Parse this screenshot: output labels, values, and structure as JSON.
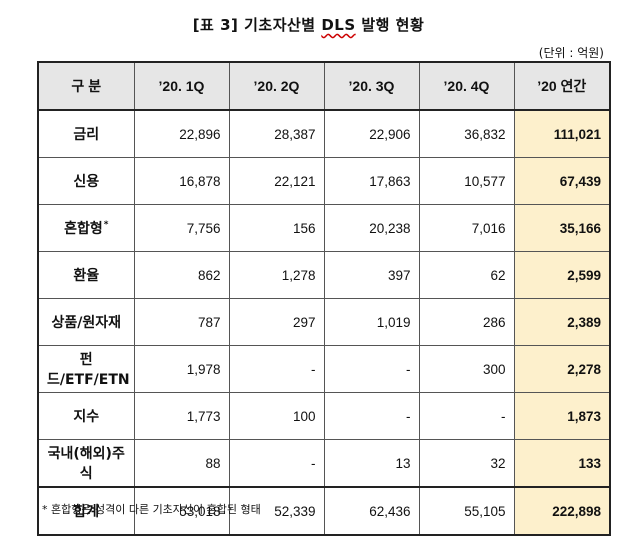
{
  "title": {
    "prefix": "[표 3] 기초자산별 ",
    "dls": "DLS",
    "suffix": " 발행 현황"
  },
  "unit": "(단위 : 억원)",
  "header": [
    "구  분",
    "’20. 1Q",
    "’20. 2Q",
    "’20. 3Q",
    "’20. 4Q",
    "’20 연간"
  ],
  "rows": [
    {
      "label": "금리",
      "sup": "",
      "values": [
        "22,896",
        "28,387",
        "22,906",
        "36,832"
      ],
      "annual": "111,021"
    },
    {
      "label": "신용",
      "sup": "",
      "values": [
        "16,878",
        "22,121",
        "17,863",
        "10,577"
      ],
      "annual": "67,439"
    },
    {
      "label": "혼합형",
      "sup": "*",
      "values": [
        "7,756",
        "156",
        "20,238",
        "7,016"
      ],
      "annual": "35,166"
    },
    {
      "label": "환율",
      "sup": "",
      "values": [
        "862",
        "1,278",
        "397",
        "62"
      ],
      "annual": "2,599"
    },
    {
      "label": "상품/원자재",
      "sup": "",
      "values": [
        "787",
        "297",
        "1,019",
        "286"
      ],
      "annual": "2,389"
    },
    {
      "label": "펀드/ETF/ETN",
      "sup": "",
      "values": [
        "1,978",
        "-",
        "-",
        "300"
      ],
      "annual": "2,278"
    },
    {
      "label": "지수",
      "sup": "",
      "values": [
        "1,773",
        "100",
        "-",
        "-"
      ],
      "annual": "1,873"
    },
    {
      "label": "국내(해외)주식",
      "sup": "",
      "values": [
        "88",
        "-",
        "13",
        "32"
      ],
      "annual": "133"
    },
    {
      "label": "합계",
      "sup": "",
      "values": [
        "53,018",
        "52,339",
        "62,436",
        "55,105"
      ],
      "annual": "222,898"
    }
  ],
  "footnote": "* 혼합형은 성격이 다른 기초자산이 혼합된 형태",
  "colors": {
    "header_bg": "#e6e6e6",
    "annual_bg": "#fdf0cc"
  }
}
